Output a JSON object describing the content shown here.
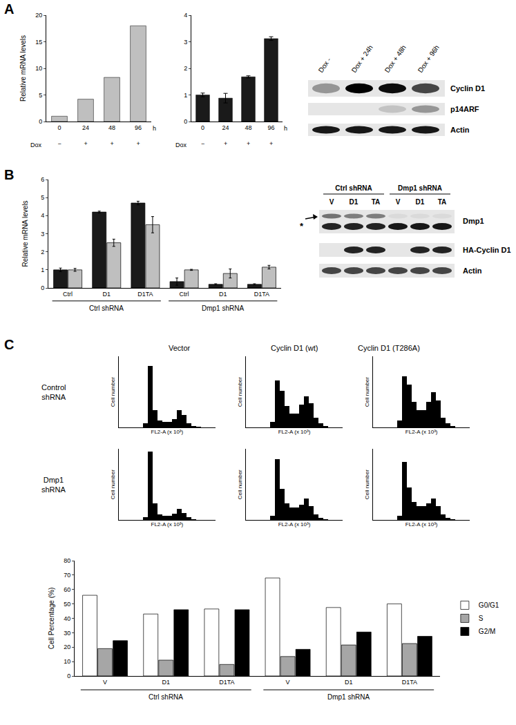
{
  "panel_labels": [
    "A",
    "B",
    "C"
  ],
  "chart_data": [
    {
      "type": "bar",
      "ylabel": "Relative mRNA levels",
      "categories": [
        "0",
        "24",
        "48",
        "96"
      ],
      "dox": [
        "−",
        "+",
        "+",
        "+"
      ],
      "x_unit": "h",
      "row_label": "Dox",
      "values": [
        1,
        4.2,
        8.3,
        18
      ],
      "color": "#bfbfbf",
      "ylim": [
        0,
        20
      ],
      "yticks": [
        0,
        5,
        10,
        15,
        20
      ],
      "grid": false
    },
    {
      "type": "bar",
      "categories": [
        "0",
        "24",
        "48",
        "96"
      ],
      "dox": [
        "−",
        "+",
        "+",
        "+"
      ],
      "x_unit": "h",
      "row_label": "Dox",
      "values": [
        1,
        0.88,
        1.68,
        3.12
      ],
      "errors": [
        0.07,
        0.18,
        0.04,
        0.07
      ],
      "color": "#1a1a1a",
      "ylim": [
        0,
        4
      ],
      "yticks": [
        0,
        1,
        2,
        3,
        4
      ],
      "grid": false
    },
    {
      "type": "bar",
      "ylabel": "Relative mRNA levels",
      "categories": [
        "Ctrl",
        "D1",
        "D1TA",
        "Ctrl",
        "D1",
        "D1TA"
      ],
      "groups": [
        "Ctrl shRNA",
        "Ctrl shRNA",
        "Ctrl shRNA",
        "Dmp1 shRNA",
        "Dmp1 shRNA",
        "Dmp1 shRNA"
      ],
      "series": [
        {
          "color": "#1a1a1a",
          "values": [
            1.0,
            4.2,
            4.7,
            0.35,
            0.2,
            0.2
          ],
          "errors": [
            0.1,
            0.05,
            0.1,
            0.2,
            0.03,
            0.03
          ]
        },
        {
          "color": "#bfbfbf",
          "values": [
            1.0,
            2.5,
            3.5,
            1.0,
            0.8,
            1.15
          ],
          "errors": [
            0.08,
            0.2,
            0.45,
            0.03,
            0.25,
            0.1
          ]
        }
      ],
      "ylim": [
        0,
        6
      ],
      "yticks": [
        0,
        1,
        2,
        3,
        4,
        5,
        6
      ],
      "grid": false
    },
    {
      "type": "bar",
      "ylabel": "Cell Percentage (%)",
      "categories": [
        "V",
        "D1",
        "D1TA",
        "V",
        "D1",
        "D1TA"
      ],
      "groups": [
        "Ctrl shRNA",
        "Ctrl shRNA",
        "Ctrl shRNA",
        "Dmp1 shRNA",
        "Dmp1 shRNA",
        "Dmp1 shRNA"
      ],
      "series": [
        {
          "name": "G0/G1",
          "color": "#ffffff",
          "values": [
            56,
            43,
            46.5,
            68,
            47.5,
            50
          ]
        },
        {
          "name": "S",
          "color": "#a6a6a6",
          "values": [
            19,
            11,
            8,
            13.5,
            21.5,
            22.5
          ]
        },
        {
          "name": "G2/M",
          "color": "#000000",
          "values": [
            24.5,
            46,
            46,
            18.5,
            30.5,
            27.5
          ]
        }
      ],
      "ylim": [
        0,
        80
      ],
      "yticks": [
        0,
        10,
        20,
        30,
        40,
        50,
        60,
        70,
        80
      ],
      "grid": false,
      "legend": "right"
    },
    {
      "type": "histogram",
      "column_titles": [
        "Vector",
        "Cyclin D1 (wt)",
        "Cyclin D1 (T286A)"
      ],
      "row_titles": [
        "Control shRNA",
        "Dmp1 shRNA"
      ],
      "xlabel": "FL2-A (x 10³)",
      "ylabel": "Cell number",
      "bins": [
        0,
        10,
        20,
        30,
        40,
        50,
        60,
        70,
        80,
        90,
        100,
        110,
        120,
        130,
        140,
        150,
        160,
        170,
        180,
        190,
        200
      ],
      "counts": [
        [
          0,
          0,
          0,
          0,
          0,
          300,
          4300,
          1200,
          500,
          400,
          400,
          600,
          1200,
          900,
          300,
          100,
          50,
          0,
          0,
          0
        ],
        [
          0,
          0,
          0,
          0,
          0,
          400,
          3300,
          2600,
          1500,
          1000,
          1000,
          1600,
          2200,
          1700,
          700,
          300,
          100,
          0,
          0,
          0
        ],
        [
          0,
          0,
          0,
          0,
          0,
          500,
          3600,
          3000,
          1800,
          1200,
          1200,
          1800,
          2500,
          1900,
          700,
          300,
          100,
          0,
          0,
          0
        ],
        [
          0,
          0,
          0,
          0,
          0,
          200,
          4800,
          1200,
          400,
          300,
          300,
          450,
          800,
          500,
          200,
          80,
          30,
          0,
          0,
          0
        ],
        [
          0,
          0,
          0,
          0,
          0,
          300,
          4300,
          2200,
          1200,
          900,
          900,
          1100,
          1500,
          1000,
          400,
          150,
          50,
          0,
          0,
          0
        ],
        [
          0,
          0,
          0,
          0,
          0,
          300,
          4100,
          2300,
          1300,
          1000,
          1000,
          1200,
          1500,
          1000,
          400,
          150,
          50,
          0,
          0,
          0
        ]
      ],
      "color": "#000000",
      "xlim": [
        0,
        200
      ],
      "ylim": [
        0,
        5000
      ],
      "tick_labels": false,
      "grid": false
    }
  ],
  "blots": [
    {
      "lanes": [
        "Dox -",
        "Dox + 24h",
        "Dox + 48h",
        "Dox + 96h"
      ],
      "rows": [
        {
          "label": "Cyclin D1",
          "intensity": [
            0.35,
            1,
            0.95,
            0.7
          ]
        },
        {
          "label": "p14ARF",
          "intensity": [
            0,
            0,
            0.15,
            0.35
          ]
        },
        {
          "label": "Actin",
          "intensity": [
            0.9,
            0.9,
            0.9,
            0.9
          ]
        }
      ]
    },
    {
      "groups": [
        "Ctrl shRNA",
        "Ctrl shRNA",
        "Ctrl shRNA",
        "Dmp1 shRNA",
        "Dmp1 shRNA",
        "Dmp1 shRNA"
      ],
      "lanes": [
        "V",
        "D1",
        "TA",
        "V",
        "D1",
        "TA"
      ],
      "marker_label": "*",
      "marker_intensity": [
        0.85,
        0.85,
        0.85,
        0.9,
        0.9,
        0.9
      ],
      "rows": [
        {
          "label": "Dmp1",
          "intensity": [
            0.5,
            0.45,
            0.45,
            0.05,
            0.05,
            0.05
          ]
        },
        {
          "label": "HA-Cyclin D1",
          "intensity": [
            0,
            0.85,
            0.85,
            0,
            0.85,
            0.85
          ]
        },
        {
          "label": "Actin",
          "intensity": [
            0.7,
            0.7,
            0.7,
            0.7,
            0.7,
            0.7
          ]
        }
      ]
    }
  ]
}
